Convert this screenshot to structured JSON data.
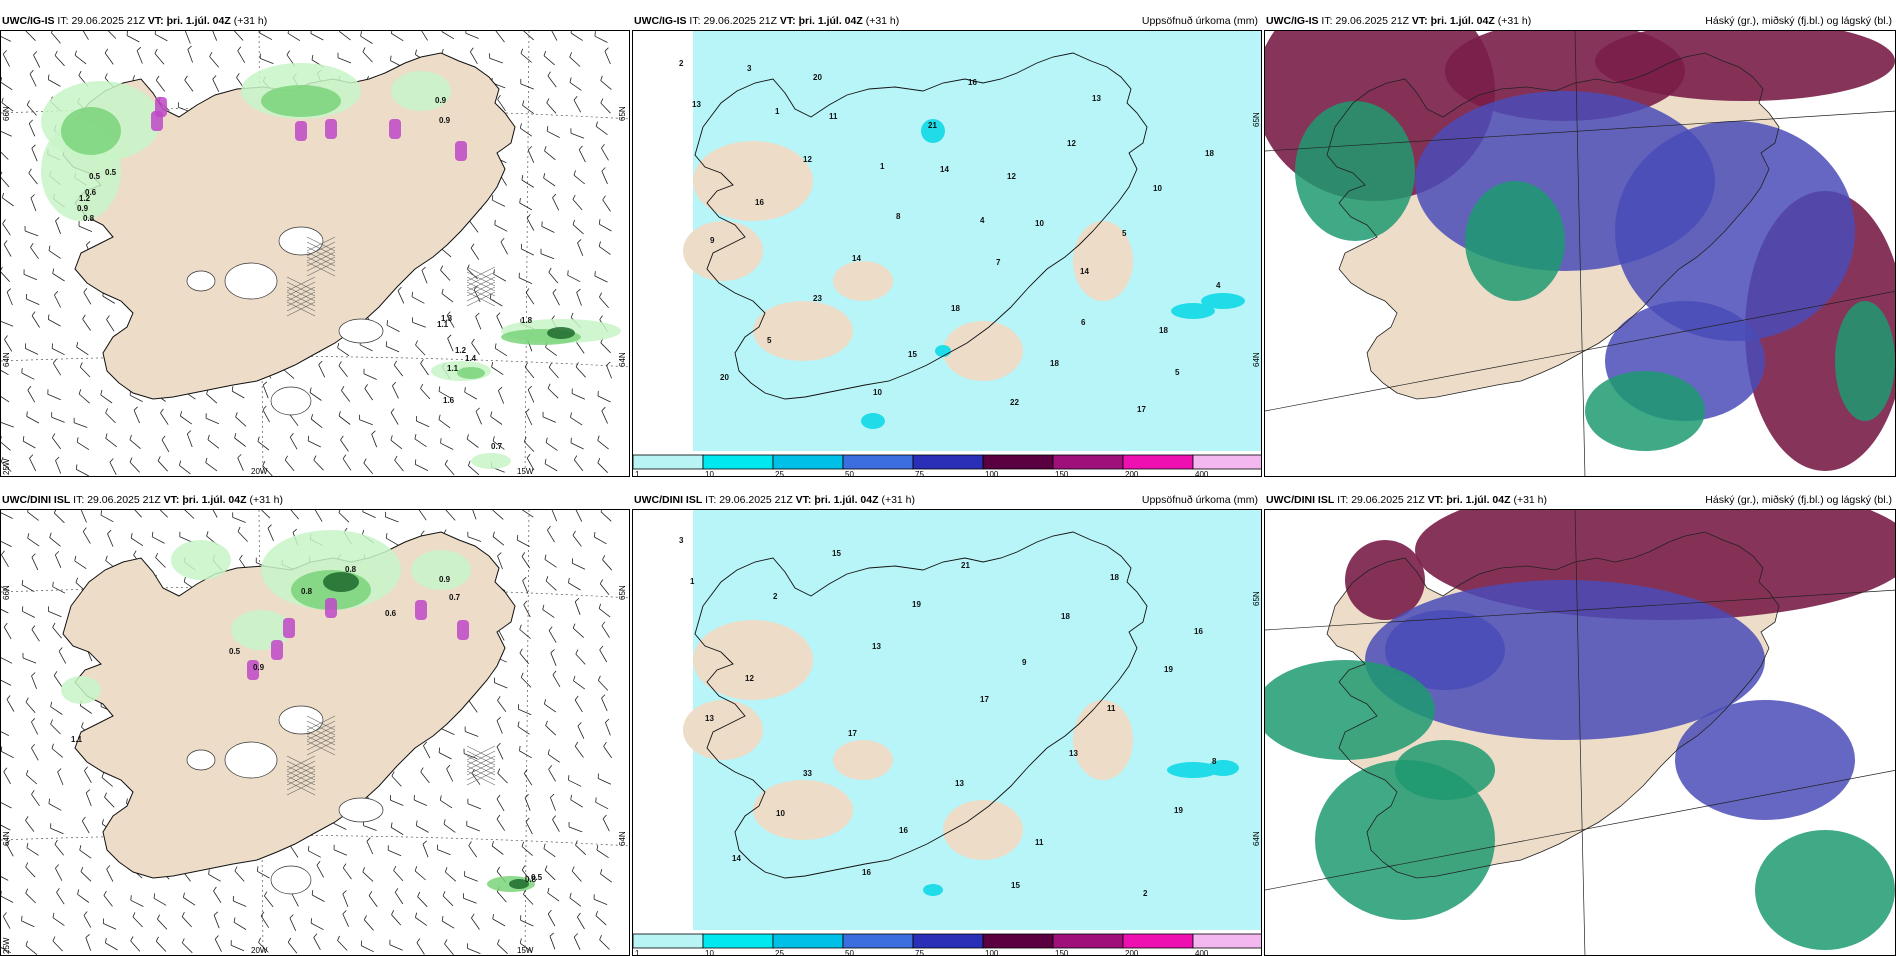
{
  "panels": [
    {
      "id": "r0c0",
      "model": "UWC/IG-IS",
      "it_label": "IT:",
      "it_value": "29.06.2025 21Z",
      "vt_label": "VT:",
      "vt_value": "þri. 1.júl. 04Z",
      "lead": "(+31 h)",
      "right_title": "",
      "kind": "wind",
      "axis_labels": [
        "66N",
        "64N",
        "25W",
        "20W",
        "15W",
        "65N",
        "64N"
      ],
      "values": [
        "0.9",
        "0.9",
        "0.5",
        "0.5",
        "0.6",
        "1.2",
        "0.9",
        "0.8",
        "1.1",
        "1.3",
        "1.2",
        "1.1",
        "1.6",
        "0.7",
        "1.4",
        "1.8"
      ]
    },
    {
      "id": "r0c1",
      "model": "UWC/IG-IS",
      "it_label": "IT:",
      "it_value": "29.06.2025 21Z",
      "vt_label": "VT:",
      "vt_value": "þri. 1.júl. 04Z",
      "lead": "(+31 h)",
      "right_title": "Uppsöfnuð úrkoma (mm)",
      "kind": "precip",
      "axis_labels": [
        "65N",
        "64N"
      ],
      "values": [
        "2",
        "1",
        "1",
        "4",
        "14",
        "18",
        "20",
        "20",
        "21",
        "12",
        "5",
        "4",
        "5",
        "10",
        "16",
        "12",
        "10",
        "9",
        "23",
        "15",
        "22",
        "13",
        "18",
        "16",
        "14",
        "18",
        "18",
        "17",
        "13",
        "12",
        "8",
        "7",
        "6",
        "5",
        "3",
        "11",
        "14",
        "10"
      ]
    },
    {
      "id": "r0c2",
      "model": "UWC/IG-IS",
      "it_label": "IT:",
      "it_value": "29.06.2025 21Z",
      "vt_label": "VT:",
      "vt_value": "þri. 1.júl. 04Z",
      "lead": "(+31 h)",
      "right_title": "Háský (gr.), miðský (fj.bl.) og lágský (bl.)",
      "kind": "cloud",
      "axis_labels": [],
      "values": []
    },
    {
      "id": "r1c0",
      "model": "UWC/DINI ISL",
      "it_label": "IT:",
      "it_value": "29.06.2025 21Z",
      "vt_label": "VT:",
      "vt_value": "þri. 1.júl. 04Z",
      "lead": "(+31 h)",
      "right_title": "",
      "kind": "wind",
      "axis_labels": [
        "66N",
        "64N",
        "25W",
        "20W",
        "15W",
        "65N",
        "64N"
      ],
      "values": [
        "0.8",
        "0.9",
        "0.6",
        "0.7",
        "0.5",
        "0.9",
        "1.1",
        "0.8",
        "0.5",
        "0.8"
      ]
    },
    {
      "id": "r1c1",
      "model": "UWC/DINI ISL",
      "it_label": "IT:",
      "it_value": "29.06.2025 21Z",
      "vt_label": "VT:",
      "vt_value": "þri. 1.júl. 04Z",
      "lead": "(+31 h)",
      "right_title": "Uppsöfnuð úrkoma (mm)",
      "kind": "precip",
      "axis_labels": [
        "65N",
        "64N"
      ],
      "values": [
        "3",
        "2",
        "13",
        "17",
        "13",
        "19",
        "14",
        "15",
        "19",
        "9",
        "11",
        "8",
        "10",
        "16",
        "21",
        "18",
        "19",
        "13",
        "33",
        "16",
        "15",
        "18",
        "16",
        "12",
        "17",
        "13",
        "11",
        "2",
        "1"
      ]
    },
    {
      "id": "r1c2",
      "model": "UWC/DINI ISL",
      "it_label": "IT:",
      "it_value": "29.06.2025 21Z",
      "vt_label": "VT:",
      "vt_value": "þri. 1.júl. 04Z",
      "lead": "(+31 h)",
      "right_title": "Háský (gr.), miðský (fj.bl.) og lágský (bl.)",
      "kind": "cloud",
      "axis_labels": [],
      "values": []
    }
  ],
  "colorbar": {
    "labels": [
      "1",
      "10",
      "25",
      "50",
      "75",
      "100",
      "150",
      "200",
      "400"
    ],
    "colors": [
      "#b8f4f4",
      "#00e8ef",
      "#00c0e8",
      "#3c6ee0",
      "#2a2fb8",
      "#5a0040",
      "#a0107a",
      "#ee10b0",
      "#f4b8f0"
    ]
  },
  "colors": {
    "land": "#ecdcc8",
    "sea_precip": "#b8f5f8",
    "precip_mid": "#20dce8",
    "wind_light": "#c8f5c8",
    "wind_mid": "#7ad47a",
    "wind_dark": "#1e6a2e",
    "cloud_high": "#7a1e48",
    "cloud_mid": "#4a4cb8",
    "cloud_low": "#1f9a70"
  }
}
